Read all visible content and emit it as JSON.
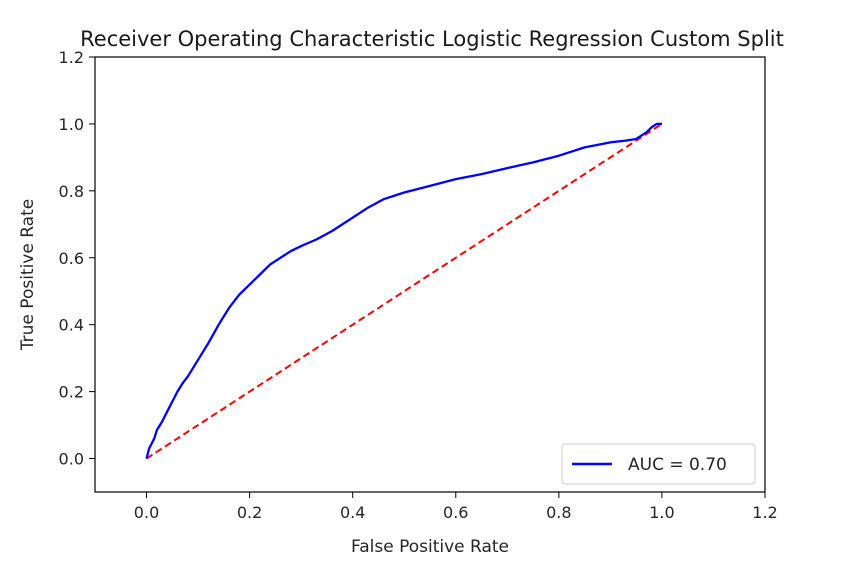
{
  "chart_data": {
    "type": "line",
    "title": "Receiver Operating Characteristic Logistic Regression Custom Split",
    "xlabel": "False Positive Rate",
    "ylabel": "True Positive Rate",
    "xlim": [
      -0.1,
      1.2
    ],
    "ylim": [
      -0.1,
      1.2
    ],
    "xticks": [
      "0.0",
      "0.2",
      "0.4",
      "0.6",
      "0.8",
      "1.0",
      "1.2"
    ],
    "yticks": [
      "0.0",
      "0.2",
      "0.4",
      "0.6",
      "0.8",
      "1.0",
      "1.2"
    ],
    "grid": false,
    "legend_position": "lower-right",
    "series": [
      {
        "name": "AUC = 0.70",
        "color": "#0000ff",
        "style": "solid",
        "x": [
          0.0,
          0.005,
          0.01,
          0.015,
          0.02,
          0.03,
          0.04,
          0.05,
          0.06,
          0.07,
          0.08,
          0.09,
          0.1,
          0.12,
          0.14,
          0.16,
          0.18,
          0.2,
          0.22,
          0.24,
          0.26,
          0.28,
          0.3,
          0.33,
          0.36,
          0.4,
          0.43,
          0.46,
          0.5,
          0.55,
          0.6,
          0.65,
          0.7,
          0.75,
          0.8,
          0.85,
          0.9,
          0.93,
          0.95,
          0.97,
          0.98,
          0.99,
          1.0
        ],
        "y": [
          0.0,
          0.03,
          0.045,
          0.06,
          0.085,
          0.11,
          0.14,
          0.17,
          0.2,
          0.225,
          0.245,
          0.27,
          0.295,
          0.345,
          0.4,
          0.45,
          0.49,
          0.52,
          0.55,
          0.58,
          0.6,
          0.62,
          0.635,
          0.655,
          0.68,
          0.72,
          0.75,
          0.775,
          0.795,
          0.815,
          0.835,
          0.85,
          0.868,
          0.885,
          0.905,
          0.93,
          0.945,
          0.95,
          0.955,
          0.975,
          0.99,
          1.0,
          1.0
        ]
      },
      {
        "name": "",
        "color": "#ff0000",
        "style": "dashed",
        "x": [
          0.0,
          1.0
        ],
        "y": [
          0.0,
          1.0
        ]
      }
    ]
  }
}
